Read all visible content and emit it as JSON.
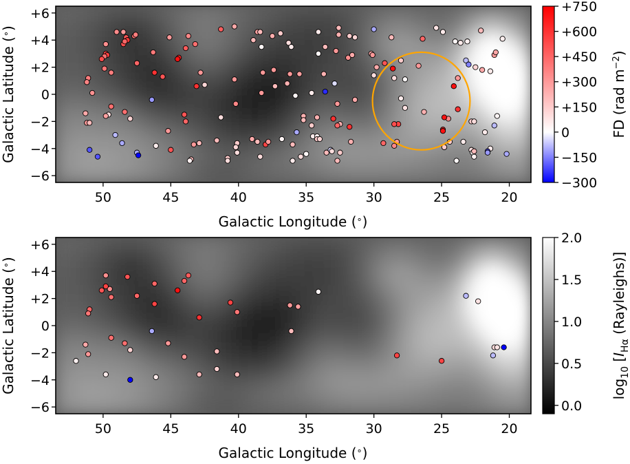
{
  "chart_data": [
    {
      "type": "scatter",
      "panel": "top",
      "xlabel": "Galactic Longitude ($^\\circ$)",
      "ylabel": "Galactic Latitude ($^\\circ$)",
      "xlim": [
        53.5,
        18.4
      ],
      "ylim": [
        -6.5,
        6.5
      ],
      "xticks": [
        {
          "v": 50,
          "t": "50"
        },
        {
          "v": 45,
          "t": "45"
        },
        {
          "v": 40,
          "t": "40"
        },
        {
          "v": 35,
          "t": "35"
        },
        {
          "v": 30,
          "t": "30"
        },
        {
          "v": 25,
          "t": "25"
        },
        {
          "v": 20,
          "t": "20"
        }
      ],
      "yticks": [
        {
          "v": 6,
          "t": "+6"
        },
        {
          "v": 4,
          "t": "+4"
        },
        {
          "v": 2,
          "t": "+2"
        },
        {
          "v": 0,
          "t": "0"
        },
        {
          "v": -2,
          "t": "−2"
        },
        {
          "v": -4,
          "t": "−4"
        },
        {
          "v": -6,
          "t": "−6"
        }
      ],
      "background": "H-alpha intensity map (grayscale, log10 Rayleighs)",
      "colorbar": {
        "label": "FD (rad m$^{-2}$)",
        "min": -300,
        "max": 750,
        "colormap": "bwr",
        "ticks": [
          {
            "v": 750,
            "t": "+750"
          },
          {
            "v": 600,
            "t": "+600"
          },
          {
            "v": 450,
            "t": "+450"
          },
          {
            "v": 300,
            "t": "+300"
          },
          {
            "v": 150,
            "t": "+150"
          },
          {
            "v": 0,
            "t": "0"
          },
          {
            "v": -150,
            "t": "−150"
          },
          {
            "v": -300,
            "t": "−300"
          }
        ]
      },
      "annotation": {
        "shape": "circle",
        "color": "#ffa500",
        "center_l": 26.5,
        "center_b": -0.5,
        "radius_deg": 3.6
      },
      "points": [
        [
          49.0,
          4.6,
          340
        ],
        [
          48.5,
          4.6,
          300
        ],
        [
          47.7,
          4.3,
          420
        ],
        [
          47.6,
          4.4,
          380
        ],
        [
          48.3,
          4.2,
          500
        ],
        [
          48.2,
          4.0,
          580
        ],
        [
          48.5,
          3.7,
          520
        ],
        [
          48.4,
          3.9,
          450
        ],
        [
          46.3,
          3.1,
          390
        ],
        [
          45.1,
          4.2,
          300
        ],
        [
          43.7,
          4.3,
          350
        ],
        [
          43.2,
          3.7,
          420
        ],
        [
          43.9,
          3.4,
          480
        ],
        [
          44.4,
          2.7,
          650
        ],
        [
          44.5,
          2.6,
          700
        ],
        [
          49.8,
          3.7,
          330
        ],
        [
          49.8,
          3.0,
          550
        ],
        [
          49.7,
          2.9,
          560
        ],
        [
          49.9,
          2.8,
          420
        ],
        [
          50.1,
          2.6,
          520
        ],
        [
          49.9,
          1.9,
          400
        ],
        [
          49.4,
          1.6,
          380
        ],
        [
          47.5,
          2.3,
          450
        ],
        [
          46.2,
          1.6,
          600
        ],
        [
          45.6,
          1.3,
          500
        ],
        [
          51.1,
          1.2,
          380
        ],
        [
          51.2,
          0.9,
          360
        ],
        [
          50.8,
          0.1,
          320
        ],
        [
          43.1,
          0.6,
          600
        ],
        [
          42.5,
          0.7,
          120
        ],
        [
          41.3,
          4.8,
          470
        ],
        [
          40.3,
          5.0,
          250
        ],
        [
          38.6,
          4.6,
          280
        ],
        [
          38.4,
          4.6,
          200
        ],
        [
          37.5,
          4.3,
          240
        ],
        [
          36.9,
          4.5,
          150
        ],
        [
          34.1,
          4.6,
          60
        ],
        [
          32.6,
          4.9,
          200
        ],
        [
          32.6,
          4.4,
          230
        ],
        [
          31.8,
          4.3,
          150
        ],
        [
          31.4,
          4.2,
          120
        ],
        [
          30.0,
          4.8,
          -100
        ],
        [
          28.7,
          4.2,
          200
        ],
        [
          25.4,
          4.9,
          80
        ],
        [
          24.9,
          4.6,
          60
        ],
        [
          22.1,
          4.7,
          200
        ],
        [
          20.5,
          4.1,
          50
        ],
        [
          38.9,
          4.0,
          200
        ],
        [
          38.3,
          3.5,
          30
        ],
        [
          36.3,
          3.8,
          100
        ],
        [
          36.1,
          3.5,
          60
        ],
        [
          33.6,
          3.5,
          200
        ],
        [
          32.8,
          3.2,
          300
        ],
        [
          31.9,
          2.7,
          330
        ],
        [
          31.6,
          2.9,
          250
        ],
        [
          30.2,
          3.0,
          250
        ],
        [
          30.1,
          2.9,
          300
        ],
        [
          29.2,
          2.3,
          500
        ],
        [
          28.6,
          1.9,
          700
        ],
        [
          28.0,
          2.5,
          150
        ],
        [
          26.4,
          4.1,
          450
        ],
        [
          24.0,
          3.9,
          30
        ],
        [
          23.6,
          3.8,
          60
        ],
        [
          23.1,
          3.9,
          40
        ],
        [
          23.2,
          2.5,
          -80
        ],
        [
          23.0,
          2.2,
          -150
        ],
        [
          22.5,
          2.0,
          120
        ],
        [
          22.0,
          1.8,
          250
        ],
        [
          21.4,
          1.7,
          60
        ],
        [
          21.1,
          2.9,
          300
        ],
        [
          21.0,
          3.1,
          260
        ],
        [
          26.7,
          2.1,
          300
        ],
        [
          34.1,
          3.0,
          20
        ],
        [
          33.7,
          1.5,
          230
        ],
        [
          38.2,
          1.6,
          300
        ],
        [
          37.4,
          1.8,
          300
        ],
        [
          36.2,
          1.5,
          300
        ],
        [
          35.5,
          1.5,
          280
        ],
        [
          40.3,
          1.1,
          300
        ],
        [
          42.8,
          1.6,
          300
        ],
        [
          29.8,
          2.0,
          250
        ],
        [
          30.0,
          1.4,
          100
        ],
        [
          28.5,
          1.2,
          100
        ],
        [
          27.7,
          1.1,
          20
        ],
        [
          24.1,
          0.6,
          700
        ],
        [
          23.8,
          1.2,
          300
        ],
        [
          33.6,
          0.2,
          -250
        ],
        [
          32.9,
          0.8,
          -40
        ],
        [
          34.6,
          0.1,
          60
        ],
        [
          35.8,
          -0.1,
          30
        ],
        [
          36.4,
          0.8,
          230
        ],
        [
          37.3,
          0.6,
          200
        ],
        [
          38.3,
          0.1,
          300
        ],
        [
          31.4,
          -0.4,
          250
        ],
        [
          40.2,
          -0.7,
          350
        ],
        [
          44.0,
          -1.5,
          500
        ],
        [
          43.9,
          -2.0,
          450
        ],
        [
          41.3,
          -1.7,
          100
        ],
        [
          46.4,
          -0.4,
          -120
        ],
        [
          49.6,
          -1.5,
          100
        ],
        [
          49.8,
          -1.6,
          280
        ],
        [
          48.4,
          -1.3,
          420
        ],
        [
          48.0,
          -1.8,
          130
        ],
        [
          49.4,
          -0.9,
          420
        ],
        [
          51.3,
          -1.4,
          250
        ],
        [
          51.2,
          -2.1,
          300
        ],
        [
          51.0,
          -2.1,
          200
        ],
        [
          28.0,
          -0.3,
          60
        ],
        [
          27.7,
          -1.0,
          80
        ],
        [
          26.3,
          -1.3,
          230
        ],
        [
          24.5,
          -1.8,
          350
        ],
        [
          24.8,
          -1.7,
          700
        ],
        [
          23.8,
          -1.1,
          600
        ],
        [
          35.2,
          -1.6,
          230
        ],
        [
          35.2,
          -1.9,
          200
        ],
        [
          34.6,
          -2.3,
          150
        ],
        [
          34.2,
          -1.7,
          230
        ],
        [
          32.5,
          -2.2,
          230
        ],
        [
          32.7,
          -0.7,
          300
        ],
        [
          33.0,
          -1.8,
          600
        ],
        [
          32.7,
          -2.3,
          450
        ],
        [
          31.8,
          -2.4,
          600
        ],
        [
          28.2,
          -2.2,
          550
        ],
        [
          28.5,
          -2.2,
          520
        ],
        [
          24.9,
          -2.6,
          600
        ],
        [
          24.9,
          -2.7,
          700
        ],
        [
          22.8,
          -2.0,
          150
        ],
        [
          22.6,
          -2.0,
          100
        ],
        [
          21.8,
          -2.8,
          60
        ],
        [
          21.1,
          -2.3,
          -80
        ],
        [
          20.9,
          -1.6,
          30
        ],
        [
          43.3,
          -3.7,
          300
        ],
        [
          42.9,
          -3.6,
          200
        ],
        [
          41.6,
          -3.4,
          200
        ],
        [
          40.1,
          -3.6,
          150
        ],
        [
          40.2,
          -3.9,
          120
        ],
        [
          39.0,
          -3.3,
          250
        ],
        [
          38.6,
          -3.5,
          200
        ],
        [
          38.0,
          -3.7,
          550
        ],
        [
          36.8,
          -3.3,
          30
        ],
        [
          36.0,
          -3.7,
          200
        ],
        [
          35.7,
          -2.8,
          -100
        ],
        [
          35.0,
          -4.4,
          20
        ],
        [
          34.5,
          -3.1,
          60
        ],
        [
          34.2,
          -3.1,
          40
        ],
        [
          34.2,
          -3.3,
          150
        ],
        [
          34.0,
          -3.3,
          120
        ],
        [
          33.5,
          -4.3,
          200
        ],
        [
          33.2,
          -4.1,
          -50
        ],
        [
          33.1,
          -4.2,
          100
        ],
        [
          32.5,
          -4.3,
          150
        ],
        [
          32.7,
          -4.9,
          200
        ],
        [
          31.7,
          -3.5,
          230
        ],
        [
          29.3,
          -3.6,
          450
        ],
        [
          28.3,
          -3.5,
          300
        ],
        [
          28.5,
          -3.8,
          350
        ],
        [
          24.8,
          -3.9,
          280
        ],
        [
          24.4,
          -3.5,
          150
        ],
        [
          24.8,
          -3.9,
          150
        ],
        [
          23.9,
          -4.9,
          20
        ],
        [
          23.4,
          -3.5,
          60
        ],
        [
          22.8,
          -4.1,
          80
        ],
        [
          22.7,
          -4.3,
          30
        ],
        [
          22.6,
          -4.2,
          200
        ],
        [
          22.6,
          -4.6,
          40
        ],
        [
          21.4,
          -4.0,
          60
        ],
        [
          21.6,
          -4.2,
          -200
        ],
        [
          21.6,
          -4.3,
          -120
        ],
        [
          20.2,
          -4.4,
          -100
        ],
        [
          48.6,
          -3.6,
          -100
        ],
        [
          49.1,
          -3.0,
          -80
        ],
        [
          47.5,
          -4.3,
          -100
        ],
        [
          47.4,
          -4.5,
          -300
        ],
        [
          51.0,
          -4.1,
          -200
        ],
        [
          50.4,
          -4.6,
          -200
        ],
        [
          46.1,
          -3.8,
          50
        ],
        [
          45.2,
          -2.7,
          300
        ],
        [
          45.0,
          -4.1,
          500
        ],
        [
          43.5,
          -4.8,
          200
        ],
        [
          43.6,
          -4.9,
          40
        ],
        [
          40.8,
          -4.7,
          150
        ],
        [
          40.8,
          -4.9,
          100
        ],
        [
          40.1,
          -4.3,
          100
        ],
        [
          38.4,
          -4.6,
          100
        ],
        [
          36.0,
          -4.9,
          60
        ],
        [
          35.4,
          -4.6,
          100
        ],
        [
          37.8,
          -3.5,
          300
        ]
      ]
    },
    {
      "type": "scatter",
      "panel": "bottom",
      "xlabel": "Galactic Longitude ($^\\circ$)",
      "ylabel": "Galactic Latitude ($^\\circ$)",
      "xlim": [
        53.5,
        18.4
      ],
      "ylim": [
        -6.5,
        6.5
      ],
      "xticks": [
        {
          "v": 50,
          "t": "50"
        },
        {
          "v": 45,
          "t": "45"
        },
        {
          "v": 40,
          "t": "40"
        },
        {
          "v": 35,
          "t": "35"
        },
        {
          "v": 30,
          "t": "30"
        },
        {
          "v": 25,
          "t": "25"
        },
        {
          "v": 20,
          "t": "20"
        }
      ],
      "yticks": [
        {
          "v": 6,
          "t": "+6"
        },
        {
          "v": 4,
          "t": "+4"
        },
        {
          "v": 2,
          "t": "+2"
        },
        {
          "v": 0,
          "t": "0"
        },
        {
          "v": -2,
          "t": "−2"
        },
        {
          "v": -4,
          "t": "−4"
        },
        {
          "v": -6,
          "t": "−6"
        }
      ],
      "background": "H-alpha intensity map (grayscale, log10 Rayleighs)",
      "colorbar": {
        "label": "log$_{10}$ [$I_{\\mathrm{H}\\alpha}$ (Rayleighs)]",
        "min": -0.1,
        "max": 2.0,
        "colormap": "gray",
        "ticks": [
          {
            "v": 2.0,
            "t": "2.0"
          },
          {
            "v": 1.5,
            "t": "1.5"
          },
          {
            "v": 1.0,
            "t": "1.0"
          },
          {
            "v": 0.5,
            "t": "0.5"
          },
          {
            "v": 0.0,
            "t": "0.0"
          }
        ]
      },
      "points": [
        [
          49.8,
          3.7,
          330
        ],
        [
          48.2,
          3.6,
          500
        ],
        [
          46.2,
          3.1,
          450
        ],
        [
          44.0,
          3.3,
          450
        ],
        [
          43.7,
          3.7,
          480
        ],
        [
          49.5,
          2.7,
          330
        ],
        [
          49.8,
          2.9,
          550
        ],
        [
          50.1,
          2.6,
          500
        ],
        [
          49.4,
          2.1,
          420
        ],
        [
          51.0,
          1.2,
          450
        ],
        [
          51.1,
          0.9,
          400
        ],
        [
          47.5,
          2.2,
          450
        ],
        [
          46.2,
          1.6,
          550
        ],
        [
          44.5,
          2.6,
          700
        ],
        [
          42.9,
          0.6,
          600
        ],
        [
          40.6,
          1.7,
          550
        ],
        [
          40.1,
          1.0,
          400
        ],
        [
          36.2,
          1.5,
          300
        ],
        [
          35.6,
          1.4,
          280
        ],
        [
          34.1,
          2.5,
          30
        ],
        [
          36.1,
          -0.4,
          200
        ],
        [
          46.4,
          -0.4,
          -100
        ],
        [
          49.4,
          -0.9,
          420
        ],
        [
          48.4,
          -1.3,
          420
        ],
        [
          48.0,
          -1.8,
          130
        ],
        [
          51.3,
          -1.4,
          250
        ],
        [
          51.1,
          -2.1,
          300
        ],
        [
          52.0,
          -2.6,
          40
        ],
        [
          45.2,
          -1.3,
          300
        ],
        [
          44.0,
          -2.3,
          300
        ],
        [
          41.6,
          -1.9,
          200
        ],
        [
          28.3,
          -2.2,
          550
        ],
        [
          25.0,
          -2.6,
          550
        ],
        [
          49.8,
          -3.6,
          60
        ],
        [
          48.0,
          -4.0,
          -300
        ],
        [
          46.1,
          -3.8,
          60
        ],
        [
          42.9,
          -3.6,
          200
        ],
        [
          41.6,
          -3.2,
          130
        ],
        [
          40.1,
          -3.6,
          200
        ],
        [
          23.2,
          2.2,
          -80
        ],
        [
          22.3,
          1.8,
          80
        ],
        [
          21.1,
          -1.6,
          100
        ],
        [
          20.9,
          -1.6,
          80
        ],
        [
          21.2,
          -2.2,
          -80
        ],
        [
          20.4,
          -1.6,
          -300
        ]
      ]
    }
  ],
  "colors": {
    "annotation": "#ffa500",
    "marker_edge": "#000000",
    "fd_negative": "#0000ff",
    "fd_zero": "#ffffff",
    "fd_positive": "#ff0000"
  }
}
